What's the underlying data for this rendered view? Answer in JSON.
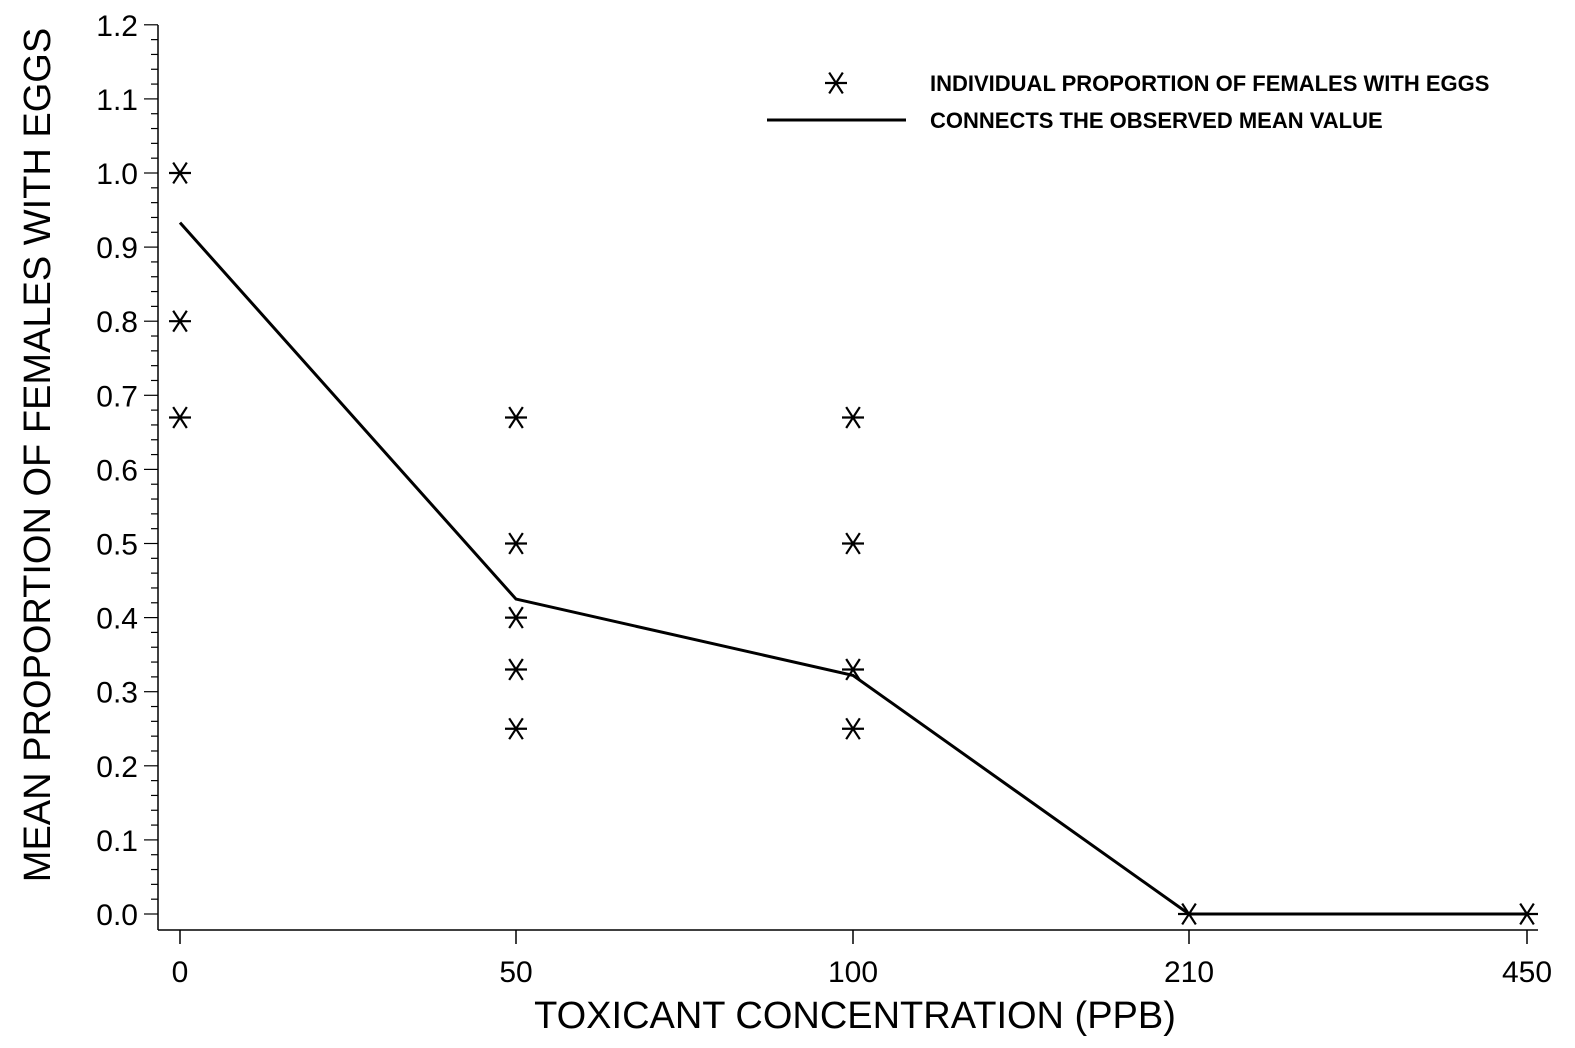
{
  "chart_data": {
    "type": "scatter",
    "title": "",
    "xlabel": "TOXICANT CONCENTRATION (PPB)",
    "ylabel": "MEAN PROPORTION OF FEMALES WITH EGGS",
    "x_categories": [
      "0",
      "50",
      "100",
      "210",
      "450"
    ],
    "y_ticks": [
      "0.0",
      "0.1",
      "0.2",
      "0.3",
      "0.4",
      "0.5",
      "0.6",
      "0.7",
      "0.8",
      "0.9",
      "1.0",
      "1.1",
      "1.2"
    ],
    "ylim": [
      0,
      1.2
    ],
    "grid": false,
    "legend_position": "top-right",
    "series": [
      {
        "name": "INDIVIDUAL PROPORTION OF FEMALES WITH EGGS",
        "marker": "asterisk",
        "points": [
          {
            "x": "0",
            "y": 1.0
          },
          {
            "x": "0",
            "y": 0.8
          },
          {
            "x": "0",
            "y": 0.67
          },
          {
            "x": "50",
            "y": 0.67
          },
          {
            "x": "50",
            "y": 0.5
          },
          {
            "x": "50",
            "y": 0.4
          },
          {
            "x": "50",
            "y": 0.33
          },
          {
            "x": "50",
            "y": 0.25
          },
          {
            "x": "100",
            "y": 0.67
          },
          {
            "x": "100",
            "y": 0.5
          },
          {
            "x": "100",
            "y": 0.33
          },
          {
            "x": "100",
            "y": 0.25
          },
          {
            "x": "210",
            "y": 0.0
          },
          {
            "x": "450",
            "y": 0.0
          }
        ]
      },
      {
        "name": "CONNECTS THE OBSERVED MEAN VALUE",
        "type": "line",
        "points": [
          {
            "x": "0",
            "y": 0.933
          },
          {
            "x": "50",
            "y": 0.425
          },
          {
            "x": "100",
            "y": 0.322
          },
          {
            "x": "210",
            "y": 0.0
          },
          {
            "x": "450",
            "y": 0.0
          }
        ]
      }
    ],
    "colors": {
      "ink": "#000000",
      "background": "#ffffff"
    }
  }
}
